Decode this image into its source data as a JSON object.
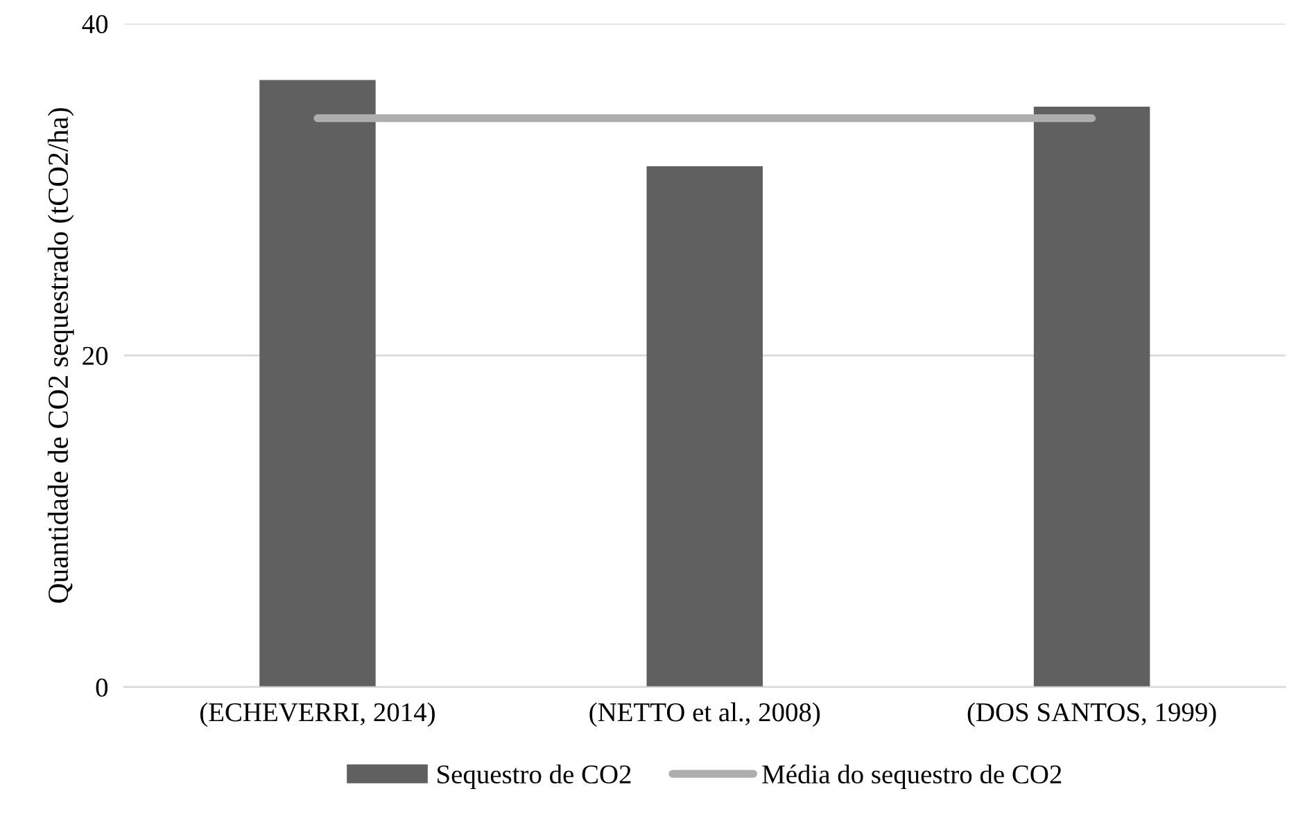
{
  "chart_data": {
    "type": "bar",
    "ylabel": "Quantidade de CO2 sequestrado (tCO2/ha)",
    "categories": [
      "(ECHEVERRI, 2014)",
      "(NETTO et al., 2008)",
      "(DOS SANTOS, 1999)"
    ],
    "series": [
      {
        "name": "Sequestro de CO2",
        "color": "#606060",
        "values": [
          36.6,
          31.4,
          35.0
        ]
      },
      {
        "name": "Média do sequestro de CO2",
        "type": "line",
        "color": "#aeaeae",
        "values": [
          34.3,
          34.3,
          34.3
        ]
      }
    ],
    "ylim": [
      0,
      40
    ],
    "yticks": [
      0,
      20,
      40
    ],
    "grid": "y",
    "legend": "bottom"
  }
}
